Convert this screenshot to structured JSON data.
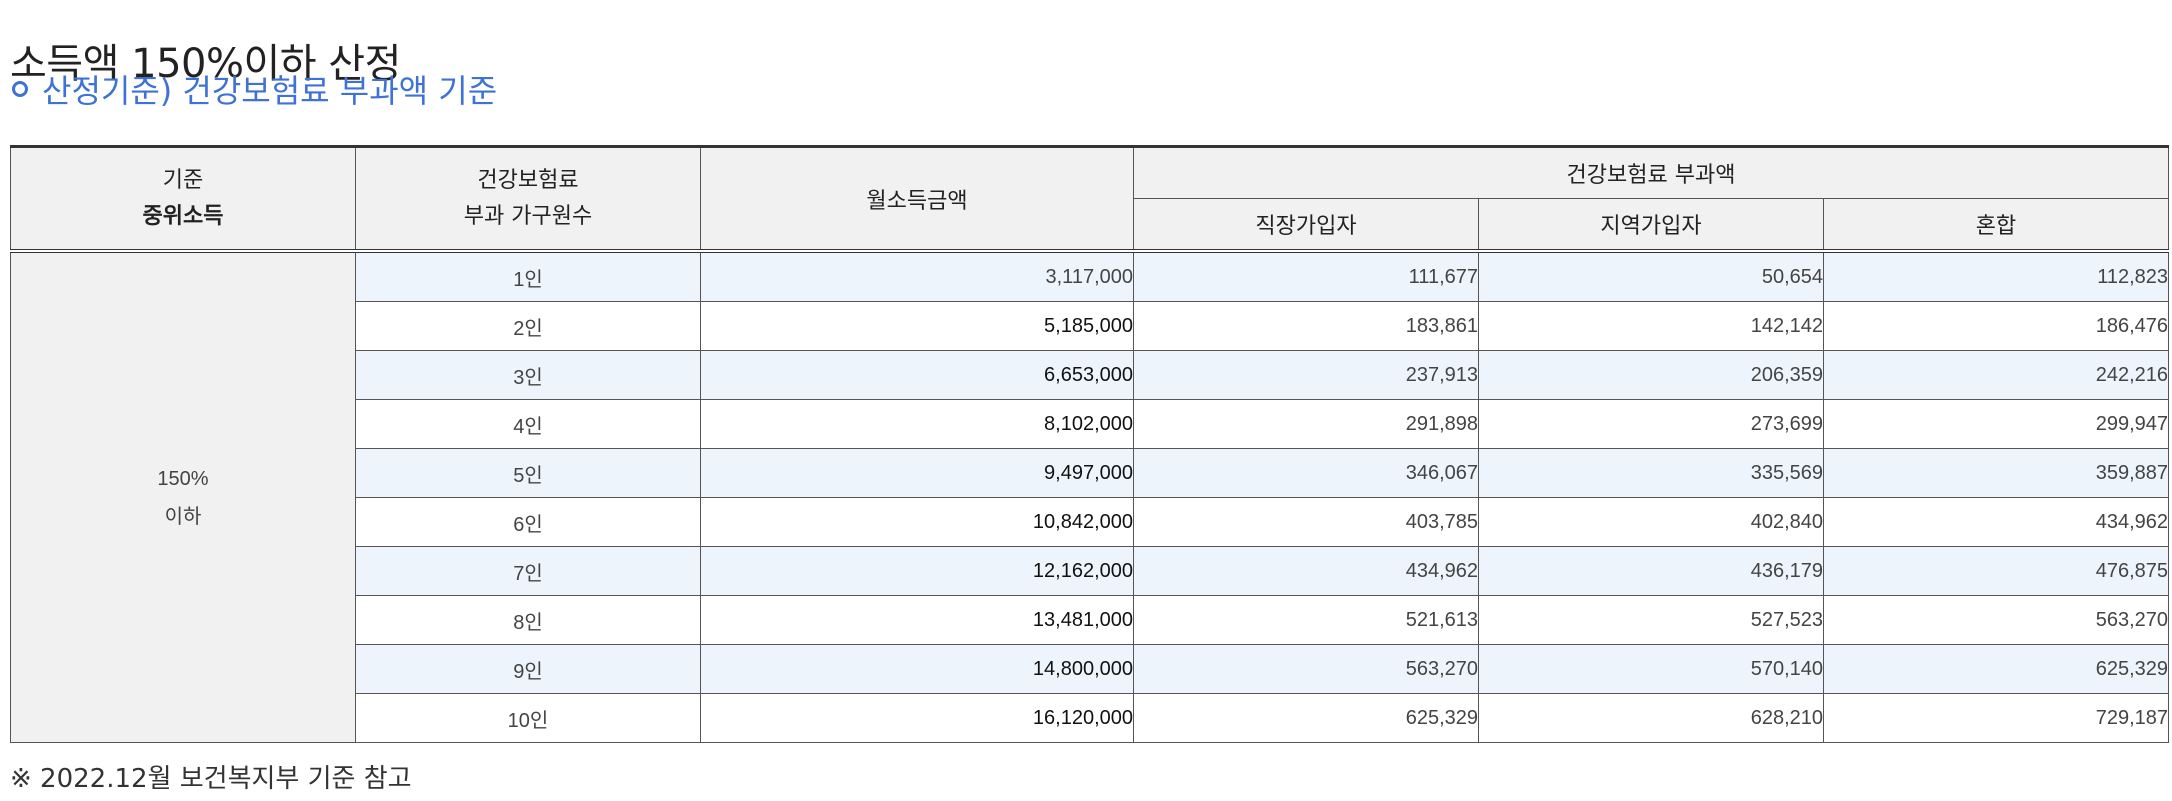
{
  "page": {
    "title": "소득액 150%이하 산정",
    "subtitle": "산정기준) 건강보험료 부과액 기준",
    "note": "※ 2022.12월 보건복지부 기준 참고"
  },
  "table": {
    "headers": {
      "standard_line1": "기준",
      "standard_line2": "중위소득",
      "household_line1": "건강보험료",
      "household_line2": "부과 가구원수",
      "monthly_income": "월소득금액",
      "premium_group": "건강보험료 부과액",
      "employee": "직장가입자",
      "regional": "지역가입자",
      "mixed": "혼합"
    },
    "standard_value_line1": "150%",
    "standard_value_line2": "이하",
    "rows": [
      {
        "count": "1인",
        "income": "3,117,000",
        "employee": "111,677",
        "regional": "50,654",
        "mixed": "112,823"
      },
      {
        "count": "2인",
        "income": "5,185,000",
        "employee": "183,861",
        "regional": "142,142",
        "mixed": "186,476"
      },
      {
        "count": "3인",
        "income": "6,653,000",
        "employee": "237,913",
        "regional": "206,359",
        "mixed": "242,216"
      },
      {
        "count": "4인",
        "income": "8,102,000",
        "employee": "291,898",
        "regional": "273,699",
        "mixed": "299,947"
      },
      {
        "count": "5인",
        "income": "9,497,000",
        "employee": "346,067",
        "regional": "335,569",
        "mixed": "359,887"
      },
      {
        "count": "6인",
        "income": "10,842,000",
        "employee": "403,785",
        "regional": "402,840",
        "mixed": "434,962"
      },
      {
        "count": "7인",
        "income": "12,162,000",
        "employee": "434,962",
        "regional": "436,179",
        "mixed": "476,875"
      },
      {
        "count": "8인",
        "income": "13,481,000",
        "employee": "521,613",
        "regional": "527,523",
        "mixed": "563,270"
      },
      {
        "count": "9인",
        "income": "14,800,000",
        "employee": "563,270",
        "regional": "570,140",
        "mixed": "625,329"
      },
      {
        "count": "10인",
        "income": "16,120,000",
        "employee": "625,329",
        "regional": "628,210",
        "mixed": "729,187"
      }
    ]
  },
  "colors": {
    "accent": "#3f72d6",
    "header_bg": "#f1f1f1",
    "alt_row_bg": "#eef4fc"
  }
}
